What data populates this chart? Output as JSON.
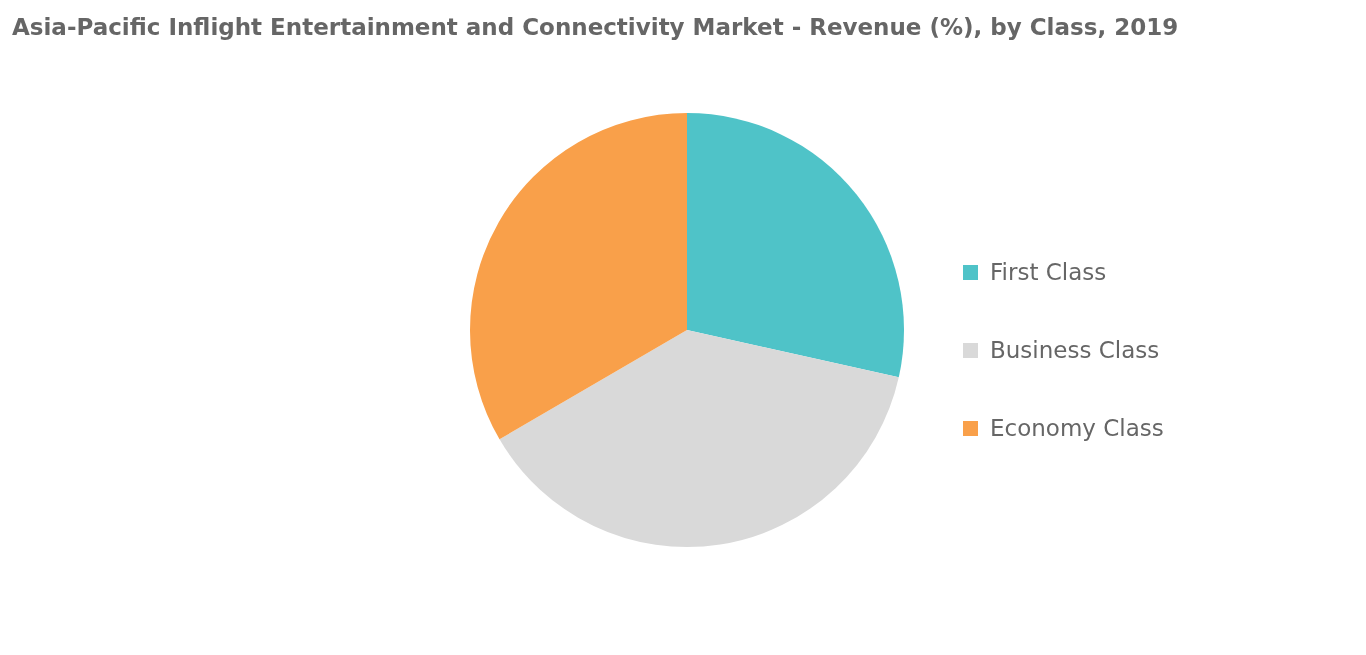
{
  "chart_data": {
    "type": "pie",
    "title": "Asia-Pacific Inflight Entertainment and Connectivity Market - Revenue (%), by Class, 2019",
    "categories": [
      "First Class",
      "Business Class",
      "Economy Class"
    ],
    "values": [
      28.5,
      38.1,
      33.4
    ],
    "colors": [
      "#4fc3c8",
      "#d9d9d9",
      "#f9a04a"
    ],
    "legend": "right"
  }
}
